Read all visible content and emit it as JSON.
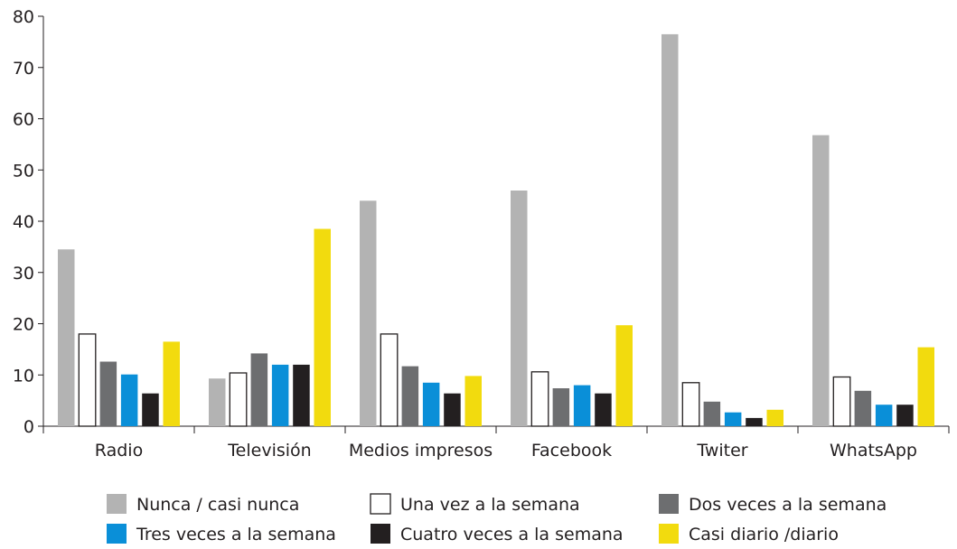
{
  "chart_data": {
    "type": "bar",
    "title": "",
    "xlabel": "",
    "ylabel": "",
    "ylim": [
      0,
      80
    ],
    "yticks": [
      0,
      10,
      20,
      30,
      40,
      50,
      60,
      70,
      80
    ],
    "grid": false,
    "legend_position": "bottom",
    "categories": [
      "Radio",
      "Televisión",
      "Medios impresos",
      "Facebook",
      "Twiter",
      "WhatsApp"
    ],
    "series": [
      {
        "name": "Nunca / casi nunca",
        "color": "#b3b3b3",
        "outline": false,
        "values": [
          34.5,
          9.3,
          44.0,
          46.0,
          76.5,
          56.8
        ]
      },
      {
        "name": "Una vez a la semana",
        "color": "#ffffff",
        "outline": true,
        "values": [
          18.0,
          10.4,
          18.0,
          10.6,
          8.5,
          9.6
        ]
      },
      {
        "name": "Dos veces a la semana",
        "color": "#6d6e70",
        "outline": false,
        "values": [
          12.6,
          14.2,
          11.7,
          7.4,
          4.8,
          6.9
        ]
      },
      {
        "name": "Tres veces a la semana",
        "color": "#0a8fd8",
        "outline": false,
        "values": [
          10.1,
          12.0,
          8.5,
          8.0,
          2.7,
          4.2
        ]
      },
      {
        "name": "Cuatro veces a la semana",
        "color": "#231f20",
        "outline": false,
        "values": [
          6.4,
          12.0,
          6.4,
          6.4,
          1.6,
          4.2
        ]
      },
      {
        "name": "Casi diario /diario",
        "color": "#f2db0e",
        "outline": false,
        "values": [
          16.5,
          38.5,
          9.8,
          19.7,
          3.2,
          15.4
        ]
      }
    ]
  }
}
